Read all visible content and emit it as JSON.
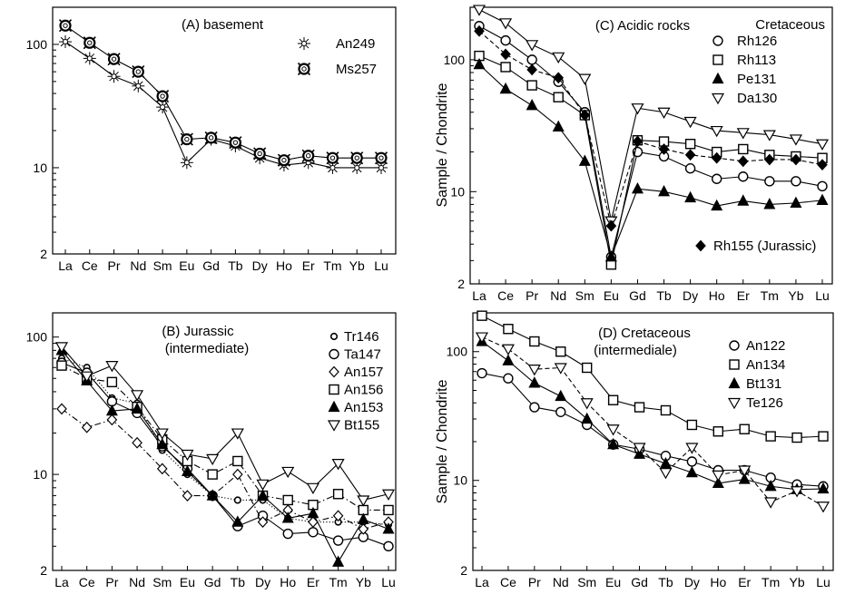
{
  "chart_data": [
    {
      "type": "line",
      "title": "(A) basement",
      "subtitle": "",
      "ylabel": "",
      "xlabel": "",
      "yscale": "log",
      "ylim": [
        2,
        200
      ],
      "yticks": [
        "2",
        "10",
        "100"
      ],
      "categories": [
        "La",
        "Ce",
        "Pr",
        "Nd",
        "Sm",
        "Eu",
        "Gd",
        "Tb",
        "Dy",
        "Ho",
        "Er",
        "Tm",
        "Yb",
        "Lu"
      ],
      "legend_title": "",
      "legend_footer": "",
      "series": [
        {
          "name": "An249",
          "marker": "asterisk",
          "dash": "solid",
          "fill": "none",
          "values": [
            105,
            77,
            55,
            46,
            31,
            11,
            17,
            15,
            12,
            10.5,
            11,
            10,
            10,
            10
          ]
        },
        {
          "name": "Ms257",
          "marker": "ring",
          "dash": "solid",
          "fill": "none",
          "values": [
            142,
            103,
            76,
            60,
            38,
            17,
            17.5,
            16,
            13,
            11.5,
            12.5,
            12,
            12,
            12
          ]
        }
      ]
    },
    {
      "type": "line",
      "title": "(C) Acidic rocks",
      "subtitle": "",
      "ylabel": "Sample / Chondrite",
      "xlabel": "",
      "yscale": "log",
      "ylim": [
        2,
        250
      ],
      "yticks": [
        "2",
        "10",
        "100"
      ],
      "categories": [
        "La",
        "Ce",
        "Pr",
        "Nd",
        "Sm",
        "Eu",
        "Gd",
        "Tb",
        "Dy",
        "Ho",
        "Er",
        "Tm",
        "Yb",
        "Lu"
      ],
      "legend_title": "Cretaceous",
      "legend_footer": "Rh155 (Jurassic)",
      "series": [
        {
          "name": "Rh126",
          "marker": "circle",
          "dash": "solid",
          "fill": "none",
          "values": [
            180,
            140,
            100,
            68,
            40,
            3.2,
            20,
            18.5,
            15,
            12.5,
            13,
            12,
            12,
            11
          ]
        },
        {
          "name": "Rh113",
          "marker": "square",
          "dash": "solid",
          "fill": "none",
          "values": [
            107,
            88,
            64,
            52,
            38,
            2.8,
            24.5,
            24,
            23,
            20,
            21,
            19,
            18.5,
            18
          ]
        },
        {
          "name": "Pe131",
          "marker": "tri-up",
          "dash": "solid",
          "fill": "black",
          "values": [
            92,
            60,
            45,
            31,
            17,
            3.2,
            10.5,
            10,
            9,
            7.8,
            8.5,
            8,
            8.2,
            8.6
          ]
        },
        {
          "name": "Da130",
          "marker": "tri-down",
          "dash": "solid",
          "fill": "none",
          "values": [
            240,
            190,
            130,
            105,
            72,
            6,
            43,
            40,
            34,
            29,
            28,
            27,
            25,
            23
          ]
        },
        {
          "name": "",
          "marker": "diamond",
          "dash": "dashed",
          "fill": "black",
          "values": [
            165,
            110,
            84,
            73,
            38,
            5.5,
            24,
            21,
            19,
            18,
            17,
            17.5,
            17.5,
            16
          ]
        }
      ]
    },
    {
      "type": "line",
      "title": "(B) Jurassic",
      "subtitle": "(intermediate)",
      "ylabel": "",
      "xlabel": "",
      "yscale": "log",
      "ylim": [
        2,
        150
      ],
      "yticks": [
        "2",
        "10",
        "100"
      ],
      "categories": [
        "La",
        "Ce",
        "Pr",
        "Nd",
        "Sm",
        "Eu",
        "Gd",
        "Tb",
        "Dy",
        "Ho",
        "Er",
        "Tm",
        "Yb",
        "Lu"
      ],
      "legend_title": "",
      "legend_footer": "",
      "series": [
        {
          "name": "Tr146",
          "marker": "small-circle",
          "dash": "dotted",
          "fill": "none",
          "values": [
            70,
            60,
            36,
            33,
            15,
            10,
            7,
            6.5,
            6.5,
            4.8,
            4.5,
            4.5,
            4.5,
            4.3
          ]
        },
        {
          "name": "Ta147",
          "marker": "circle",
          "dash": "solid",
          "fill": "none",
          "values": [
            65,
            55,
            34,
            28,
            16,
            11,
            7,
            4.2,
            5,
            3.7,
            3.8,
            3.3,
            3.5,
            3
          ]
        },
        {
          "name": "An157",
          "marker": "diamond",
          "dash": "dashdot",
          "fill": "none",
          "values": [
            30,
            22,
            25,
            17,
            11,
            7,
            7,
            10,
            4.5,
            5.5,
            4.5,
            5,
            4,
            4.5
          ]
        },
        {
          "name": "An156",
          "marker": "square",
          "dash": "dashdot",
          "fill": "none",
          "values": [
            62,
            50,
            47,
            31,
            18,
            12.5,
            10,
            12.5,
            7,
            6.5,
            6,
            7.2,
            5.5,
            5.5
          ]
        },
        {
          "name": "An153",
          "marker": "tri-up",
          "dash": "solid",
          "fill": "black",
          "values": [
            80,
            48,
            29,
            30,
            16.5,
            10.5,
            7,
            4.5,
            7,
            4.8,
            5.2,
            2.3,
            4.7,
            4
          ]
        },
        {
          "name": "Bt155",
          "marker": "tri-down",
          "dash": "solid",
          "fill": "none",
          "values": [
            85,
            52,
            62,
            38,
            20,
            14,
            13,
            20,
            8.5,
            10.5,
            8,
            12,
            6.5,
            7.2
          ]
        }
      ]
    },
    {
      "type": "line",
      "title": "(D) Cretaceous",
      "subtitle": "(intermediale)",
      "ylabel": "Sample / Chondrite",
      "xlabel": "",
      "yscale": "log",
      "ylim": [
        2,
        200
      ],
      "yticks": [
        "2",
        "10",
        "100"
      ],
      "categories": [
        "La",
        "Ce",
        "Pr",
        "Nd",
        "Sm",
        "Eu",
        "Gd",
        "Tb",
        "Dy",
        "Ho",
        "Er",
        "Tm",
        "Yb",
        "Lu"
      ],
      "legend_title": "",
      "legend_footer": "",
      "series": [
        {
          "name": "An122",
          "marker": "circle",
          "dash": "solid",
          "fill": "none",
          "values": [
            68,
            62,
            37,
            34,
            27,
            19,
            17.5,
            15.5,
            14,
            12,
            12,
            10.5,
            9.3,
            9
          ]
        },
        {
          "name": "An134",
          "marker": "square",
          "dash": "solid",
          "fill": "none",
          "values": [
            190,
            150,
            120,
            100,
            75,
            42,
            37,
            35,
            27,
            24,
            25,
            22,
            21.5,
            22
          ]
        },
        {
          "name": "Bt131",
          "marker": "tri-up",
          "dash": "solid",
          "fill": "black",
          "values": [
            120,
            85,
            57,
            45,
            30,
            19,
            16,
            13.5,
            11.5,
            9.5,
            10.2,
            9,
            8.5,
            8.6
          ]
        },
        {
          "name": "Te126",
          "marker": "tri-down",
          "dash": "dashed",
          "fill": "none",
          "values": [
            130,
            105,
            73,
            75,
            40,
            25,
            18,
            11.5,
            18,
            11,
            12,
            6.8,
            8.3,
            6.3
          ]
        }
      ]
    }
  ]
}
